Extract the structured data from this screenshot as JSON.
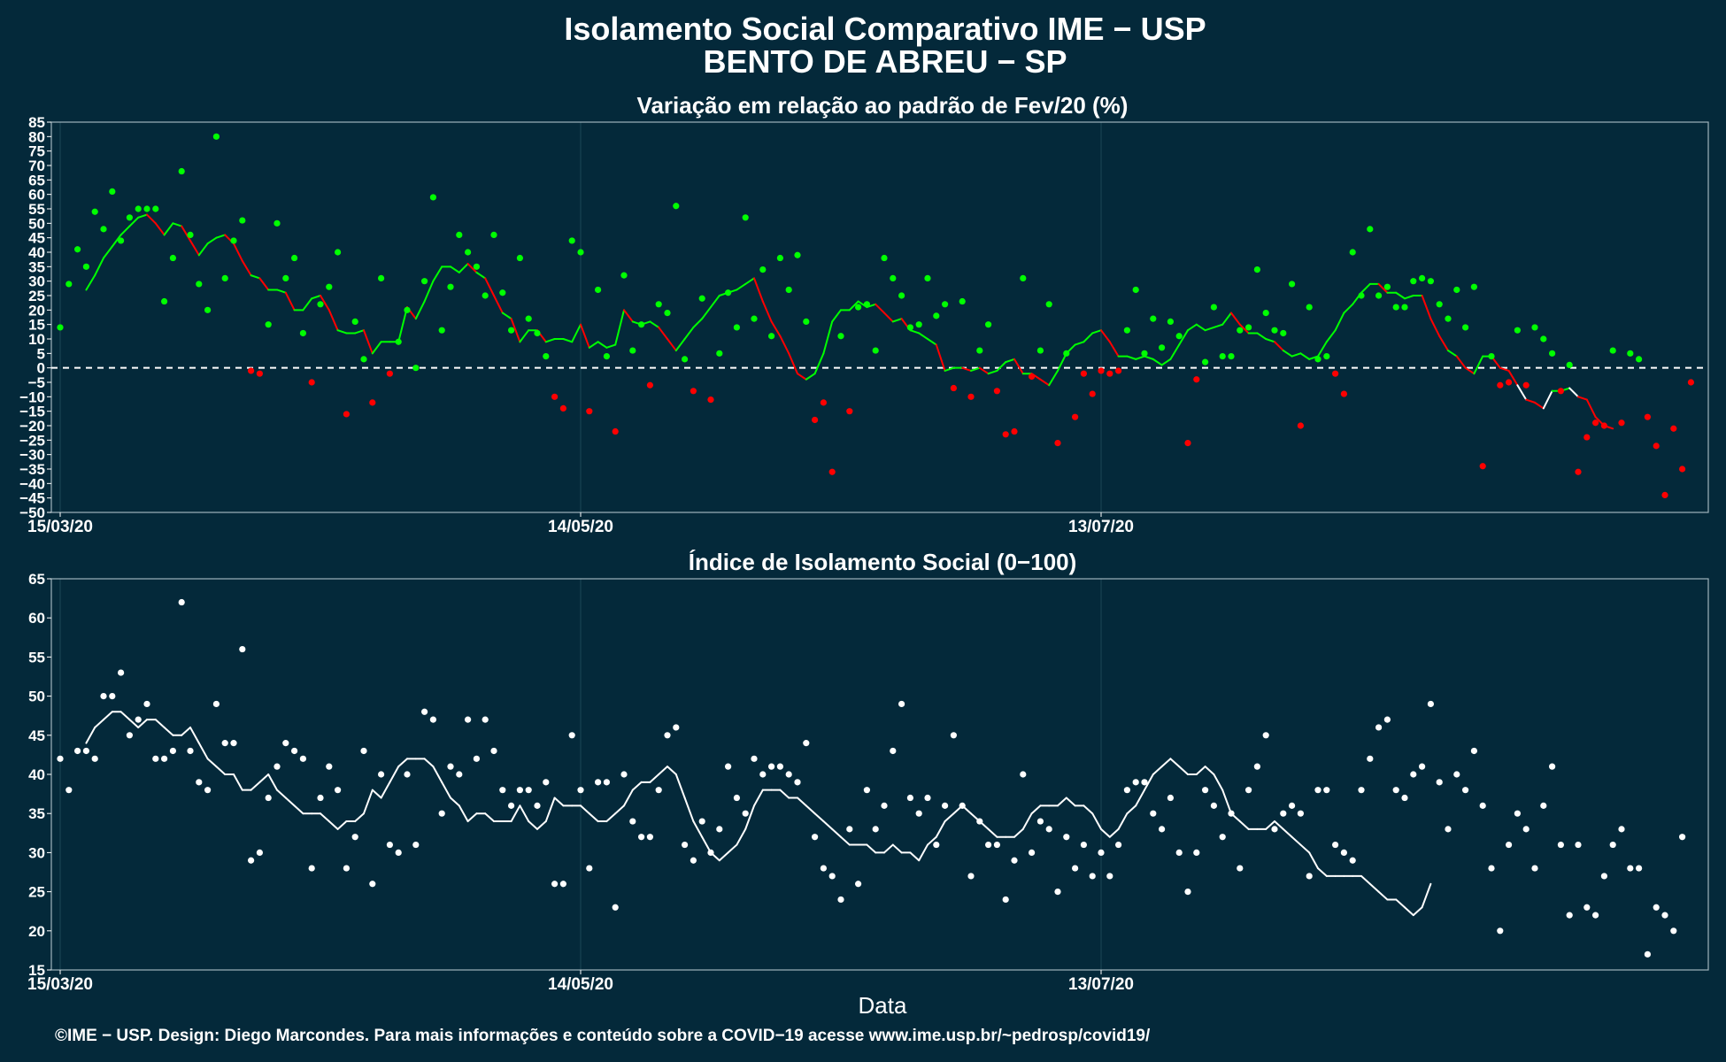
{
  "title_line1": "Isolamento Social Comparativo IME − USP",
  "title_line2": "BENTO DE ABREU − SP",
  "xlabel": "Data",
  "caption": "©IME − USP. Design: Diego Marcondes. Para mais informações e conteúdo sobre a COVID−19 acesse www.ime.usp.br/~pedrosp/covid19/",
  "colors": {
    "background": "#04293a",
    "positive": "#00ff00",
    "negative": "#ff0000",
    "neutral": "#ffffff",
    "grid": "#1b4656"
  },
  "chart_data": [
    {
      "type": "scatter",
      "subtitle": "Variação em relação ao padrão de Fev/20 (%)",
      "start_date": "15/03/20",
      "x_ticks": [
        "15/03/20",
        "14/05/20",
        "13/07/20"
      ],
      "ylim": [
        -50,
        85
      ],
      "y_ticks": [
        85,
        80,
        75,
        70,
        65,
        60,
        55,
        50,
        45,
        40,
        35,
        30,
        25,
        20,
        15,
        10,
        5,
        0,
        -5,
        -10,
        -15,
        -20,
        -25,
        -30,
        -35,
        -40,
        -45,
        -50
      ],
      "reference_line": 0,
      "series": [
        {
          "type": "scatter",
          "values": [
            14,
            29,
            41,
            35,
            54,
            48,
            61,
            44,
            52,
            55,
            55,
            55,
            23,
            38,
            68,
            46,
            29,
            20,
            80,
            31,
            44,
            51,
            -1,
            -2,
            15,
            50,
            31,
            38,
            12,
            -5,
            22,
            28,
            40,
            -16,
            16,
            3,
            -12,
            31,
            -2,
            9,
            20,
            0,
            30,
            59,
            13,
            28,
            46,
            40,
            35,
            25,
            46,
            26,
            13,
            38,
            17,
            12,
            4,
            -10,
            -14,
            44,
            40,
            -15,
            27,
            4,
            -22,
            32,
            6,
            15,
            -6,
            22,
            19,
            56,
            3,
            -8,
            24,
            -11,
            5,
            26,
            14,
            52,
            17,
            34,
            11,
            38,
            27,
            39,
            16,
            -18,
            -12,
            -36,
            11,
            -15,
            21,
            22,
            6,
            38,
            31,
            25,
            14,
            15,
            31,
            18,
            22,
            -7,
            23,
            -10,
            6,
            15,
            -8,
            -23,
            -22,
            31,
            -3,
            6,
            22,
            -26,
            5,
            -17,
            -2,
            -9,
            -1,
            -2,
            -1,
            13,
            27,
            5,
            17,
            7,
            16,
            11,
            -26,
            -4,
            2,
            21,
            4,
            4,
            13,
            14,
            34,
            19,
            13,
            12,
            29,
            -20,
            21,
            3,
            4,
            -2,
            -9,
            40,
            25,
            48,
            25,
            28,
            21,
            21,
            30,
            31,
            30,
            22,
            17,
            27,
            14,
            28,
            -34,
            4,
            -6,
            -5,
            13,
            -6,
            14,
            10,
            5,
            -8,
            1,
            -36,
            -24,
            -19,
            -20,
            6,
            -19,
            5,
            3,
            -17,
            -27,
            -44,
            -21,
            -35,
            -5
          ]
        },
        {
          "type": "line",
          "name": "moving average",
          "values": [
            27,
            32,
            38,
            42,
            46,
            49,
            52,
            53,
            50,
            46,
            50,
            49,
            44,
            39,
            43,
            45,
            46,
            43,
            37,
            32,
            31,
            27,
            27,
            26,
            20,
            20,
            24,
            25,
            20,
            13,
            12,
            12,
            13,
            5,
            9,
            9,
            9,
            21,
            17,
            23,
            30,
            35,
            35,
            33,
            36,
            33,
            31,
            25,
            19,
            17,
            9,
            13,
            13,
            9,
            10,
            10,
            9,
            15,
            7,
            9,
            7,
            8,
            20,
            16,
            15,
            16,
            14,
            10,
            6,
            10,
            14,
            17,
            21,
            25,
            26,
            27,
            29,
            31,
            23,
            16,
            11,
            5,
            -2,
            -4,
            -2,
            5,
            16,
            20,
            20,
            23,
            21,
            22,
            19,
            16,
            17,
            13,
            12,
            10,
            8,
            -1,
            0,
            0,
            -1,
            0,
            -2,
            -1,
            2,
            3,
            -2,
            -2,
            -4,
            -6,
            -1,
            5,
            8,
            9,
            12,
            13,
            9,
            4,
            4,
            3,
            4,
            3,
            1,
            3,
            8,
            13,
            15,
            13,
            14,
            15,
            19,
            15,
            12,
            12,
            10,
            9,
            6,
            4,
            5,
            3,
            4,
            9,
            13,
            19,
            22,
            26,
            29,
            29,
            26,
            26,
            24,
            25,
            25,
            17,
            11,
            6,
            4,
            0,
            -2,
            4,
            4,
            0,
            -1,
            -6,
            -11,
            -12,
            -14,
            -8,
            -8,
            -7,
            -10,
            -11,
            -17,
            -20,
            -21
          ]
        }
      ]
    },
    {
      "type": "scatter",
      "subtitle": "Índice de Isolamento Social (0−100)",
      "start_date": "15/03/20",
      "x_ticks": [
        "15/03/20",
        "14/05/20",
        "13/07/20"
      ],
      "ylim": [
        15,
        65
      ],
      "y_ticks": [
        65,
        60,
        55,
        50,
        45,
        40,
        35,
        30,
        25,
        20,
        15
      ],
      "series": [
        {
          "type": "scatter",
          "values": [
            42,
            38,
            43,
            43,
            42,
            50,
            50,
            53,
            45,
            47,
            49,
            42,
            42,
            43,
            62,
            43,
            39,
            38,
            49,
            44,
            44,
            56,
            29,
            30,
            37,
            41,
            44,
            43,
            42,
            28,
            37,
            41,
            38,
            28,
            32,
            43,
            26,
            40,
            31,
            30,
            40,
            31,
            48,
            47,
            35,
            41,
            40,
            47,
            42,
            47,
            43,
            38,
            36,
            38,
            38,
            36,
            39,
            26,
            26,
            45,
            38,
            28,
            39,
            39,
            23,
            40,
            34,
            32,
            32,
            38,
            45,
            46,
            31,
            29,
            34,
            30,
            33,
            41,
            37,
            35,
            42,
            40,
            41,
            41,
            40,
            39,
            44,
            32,
            28,
            27,
            24,
            33,
            26,
            38,
            33,
            36,
            43,
            49,
            37,
            35,
            37,
            31,
            36,
            45,
            36,
            27,
            34,
            31,
            31,
            24,
            29,
            40,
            30,
            34,
            33,
            25,
            32,
            28,
            31,
            27,
            30,
            27,
            31,
            38,
            39,
            39,
            35,
            33,
            37,
            30,
            25,
            30,
            38,
            36,
            32,
            35,
            28,
            38,
            41,
            45,
            33,
            35,
            36,
            35,
            27,
            38,
            38,
            31,
            30,
            29,
            38,
            42,
            46,
            47,
            38,
            37,
            40,
            41,
            49,
            39,
            33,
            40,
            38,
            43,
            36,
            28,
            20,
            31,
            35,
            33,
            28,
            36,
            41,
            31,
            22,
            31,
            23,
            22,
            27,
            31,
            33,
            28,
            28,
            17,
            23,
            22,
            20,
            32
          ]
        },
        {
          "type": "line",
          "name": "moving average",
          "values": [
            44,
            46,
            47,
            48,
            48,
            47,
            46,
            47,
            47,
            46,
            45,
            45,
            46,
            44,
            42,
            41,
            40,
            40,
            38,
            38,
            39,
            40,
            38,
            37,
            36,
            35,
            35,
            35,
            34,
            33,
            34,
            34,
            35,
            38,
            37,
            39,
            41,
            42,
            42,
            42,
            41,
            39,
            37,
            36,
            34,
            35,
            35,
            34,
            34,
            34,
            36,
            34,
            33,
            34,
            37,
            36,
            36,
            36,
            35,
            34,
            34,
            35,
            36,
            38,
            39,
            39,
            40,
            41,
            40,
            37,
            34,
            32,
            30,
            29,
            30,
            31,
            33,
            36,
            38,
            38,
            38,
            37,
            37,
            36,
            35,
            34,
            33,
            32,
            31,
            31,
            31,
            30,
            30,
            31,
            30,
            30,
            29,
            31,
            32,
            34,
            35,
            36,
            35,
            34,
            33,
            32,
            32,
            32,
            33,
            35,
            36,
            36,
            36,
            37,
            36,
            36,
            35,
            33,
            32,
            33,
            35,
            36,
            38,
            40,
            41,
            42,
            41,
            40,
            40,
            41,
            40,
            38,
            35,
            34,
            33,
            33,
            33,
            34,
            33,
            32,
            31,
            30,
            28,
            27,
            27,
            27,
            27,
            27,
            26,
            25,
            24,
            24,
            23,
            22,
            23,
            26
          ]
        }
      ]
    }
  ]
}
